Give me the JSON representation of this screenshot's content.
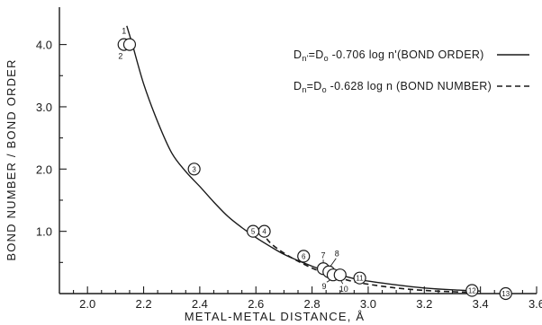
{
  "chart_data": {
    "type": "line",
    "xlabel": "METAL-METAL DISTANCE, Å",
    "ylabel": "BOND NUMBER / BOND ORDER",
    "xlim": [
      1.9,
      3.6
    ],
    "ylim": [
      0,
      4.6
    ],
    "x_ticks": [
      {
        "value": 2.0,
        "label": "2.0"
      },
      {
        "value": 2.2,
        "label": "2.2"
      },
      {
        "value": 2.4,
        "label": "2.4"
      },
      {
        "value": 2.6,
        "label": "2.6"
      },
      {
        "value": 2.8,
        "label": "2.8"
      },
      {
        "value": 3.0,
        "label": "3.0"
      },
      {
        "value": 3.2,
        "label": "3.2"
      },
      {
        "value": 3.4,
        "label": "3.4"
      },
      {
        "value": 3.6,
        "label": "3.6"
      }
    ],
    "x_minor_ticks": [
      1.95,
      2.05,
      2.1,
      2.15,
      2.25,
      2.3,
      2.35,
      2.45,
      2.5,
      2.55,
      2.65,
      2.7,
      2.75,
      2.85,
      2.9,
      2.95,
      3.05,
      3.1,
      3.15,
      3.25,
      3.3,
      3.35,
      3.45,
      3.5,
      3.55
    ],
    "y_ticks": [
      {
        "value": 1.0,
        "label": "1.0"
      },
      {
        "value": 2.0,
        "label": "2.0"
      },
      {
        "value": 3.0,
        "label": "3.0"
      },
      {
        "value": 4.0,
        "label": "4.0"
      }
    ],
    "y_minor_ticks": [
      0.5,
      1.5,
      2.5,
      3.5
    ],
    "legend_position": "top-right",
    "legend": [
      {
        "text": "Dn' = D0 - 0.706 log n' (BOND ORDER)",
        "style": "solid"
      },
      {
        "text": "Dn = D0 - 0.628 log n (BOND NUMBER)",
        "style": "dashed"
      }
    ],
    "series": [
      {
        "style": "solid",
        "x": [
          2.14,
          2.16,
          2.2,
          2.25,
          2.3,
          2.35,
          2.4,
          2.45,
          2.5,
          2.55,
          2.6,
          2.65,
          2.7,
          2.75,
          2.8,
          2.85,
          2.9,
          2.95,
          3.0,
          3.1,
          3.2,
          3.3,
          3.4
        ],
        "y": [
          4.3,
          4.0,
          3.37,
          2.76,
          2.26,
          1.96,
          1.72,
          1.47,
          1.24,
          1.06,
          0.9,
          0.76,
          0.63,
          0.53,
          0.44,
          0.36,
          0.3,
          0.24,
          0.2,
          0.14,
          0.09,
          0.06,
          0.04
        ]
      },
      {
        "style": "dashed",
        "x": [
          2.62,
          2.65,
          2.7,
          2.75,
          2.8,
          2.85,
          2.9,
          2.95,
          3.0,
          3.1,
          3.2,
          3.3,
          3.37
        ],
        "y": [
          1.0,
          0.82,
          0.65,
          0.52,
          0.41,
          0.32,
          0.25,
          0.19,
          0.15,
          0.09,
          0.05,
          0.03,
          0.02
        ]
      }
    ],
    "points": [
      {
        "id": "1",
        "x": 2.13,
        "y": 4.0,
        "label_pos": "above"
      },
      {
        "id": "2",
        "x": 2.15,
        "y": 4.0,
        "label_pos": "below-left"
      },
      {
        "id": "3",
        "x": 2.38,
        "y": 2.0,
        "label_pos": "inside"
      },
      {
        "id": "4",
        "x": 2.63,
        "y": 1.0,
        "label_pos": "inside"
      },
      {
        "id": "5",
        "x": 2.59,
        "y": 1.0,
        "label_pos": "inside"
      },
      {
        "id": "6",
        "x": 2.77,
        "y": 0.6,
        "label_pos": "inside"
      },
      {
        "id": "7",
        "x": 2.84,
        "y": 0.4,
        "label_pos": "above"
      },
      {
        "id": "8",
        "x": 2.86,
        "y": 0.35,
        "label_pos": "above-right"
      },
      {
        "id": "9",
        "x": 2.875,
        "y": 0.3,
        "label_pos": "below-left"
      },
      {
        "id": "10",
        "x": 2.9,
        "y": 0.3,
        "label_pos": "below"
      },
      {
        "id": "11",
        "x": 2.97,
        "y": 0.25,
        "label_pos": "inside"
      },
      {
        "id": "12",
        "x": 3.37,
        "y": 0.05,
        "label_pos": "inside"
      },
      {
        "id": "13",
        "x": 3.49,
        "y": 0.0,
        "label_pos": "inside"
      }
    ]
  }
}
